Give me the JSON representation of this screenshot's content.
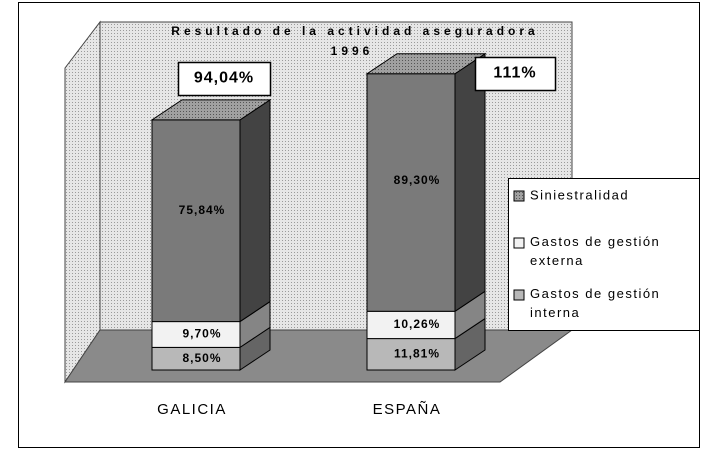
{
  "chart_data": {
    "type": "bar3d-stacked",
    "title": "Resultado de la actividad aseguradora",
    "subtitle": "1996",
    "categories": [
      "GALICIA",
      "ESPAÑA"
    ],
    "series": [
      {
        "name": "Gastos de gestión interna",
        "color": "#b8b8b8",
        "values": [
          8.5,
          11.81
        ],
        "value_labels": [
          "8,50%",
          "11,81%"
        ]
      },
      {
        "name": "Gastos de gestión externa",
        "color": "#f2f2f2",
        "values": [
          9.7,
          10.26
        ],
        "value_labels": [
          "9,70%",
          "10,26%"
        ]
      },
      {
        "name": "Siniestralidad",
        "color": "#7a7a7a",
        "values": [
          75.84,
          89.3
        ],
        "value_labels": [
          "75,84%",
          "89,30%"
        ]
      }
    ],
    "totals": [
      94.04,
      111
    ],
    "total_labels": [
      "94,04%",
      "111%"
    ]
  }
}
